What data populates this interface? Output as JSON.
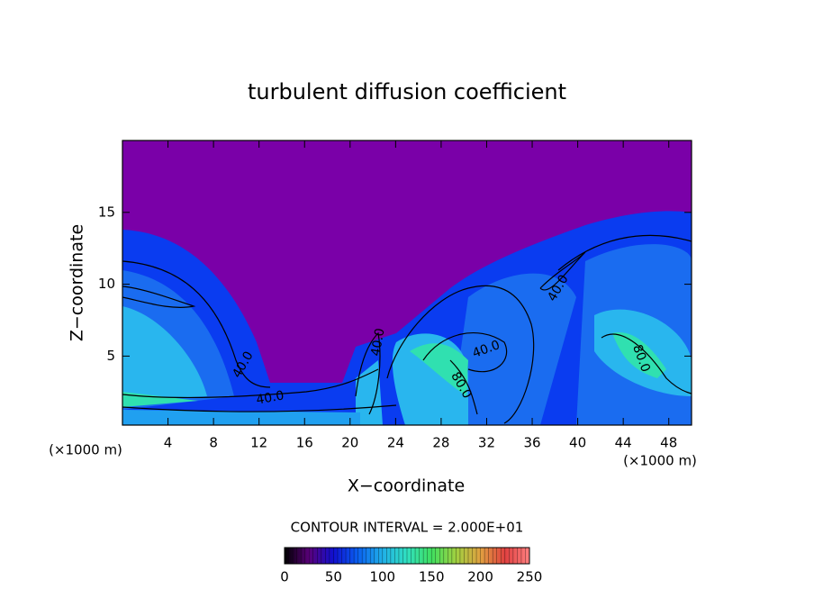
{
  "chart_data": {
    "type": "contour",
    "title": "turbulent diffusion coefficient",
    "xlabel": "X−coordinate",
    "ylabel": "Z−coordinate",
    "x_unit_label": "(×1000 m)",
    "contour_interval": "CONTOUR INTERVAL = 2.000E+01",
    "xlim": [
      0,
      50
    ],
    "xticks": [
      4,
      8,
      12,
      16,
      20,
      24,
      28,
      32,
      36,
      40,
      44,
      48
    ],
    "ylim": [
      0.2,
      20
    ],
    "yticks": [
      5,
      10,
      15
    ],
    "colorbar": {
      "lim": [
        0,
        250
      ],
      "ticks": [
        0,
        50,
        100,
        150,
        200,
        250
      ],
      "colormap": [
        "#000000",
        "#5a007a",
        "#1010d0",
        "#0a60f0",
        "#20b0e8",
        "#30e0c0",
        "#40e060",
        "#a0d040",
        "#e0a040",
        "#e04040",
        "#ff8080"
      ]
    },
    "annotations": [
      "40.0",
      "40.0",
      "40.0",
      "40.0",
      "40.0",
      "80.0",
      "80.0"
    ]
  }
}
